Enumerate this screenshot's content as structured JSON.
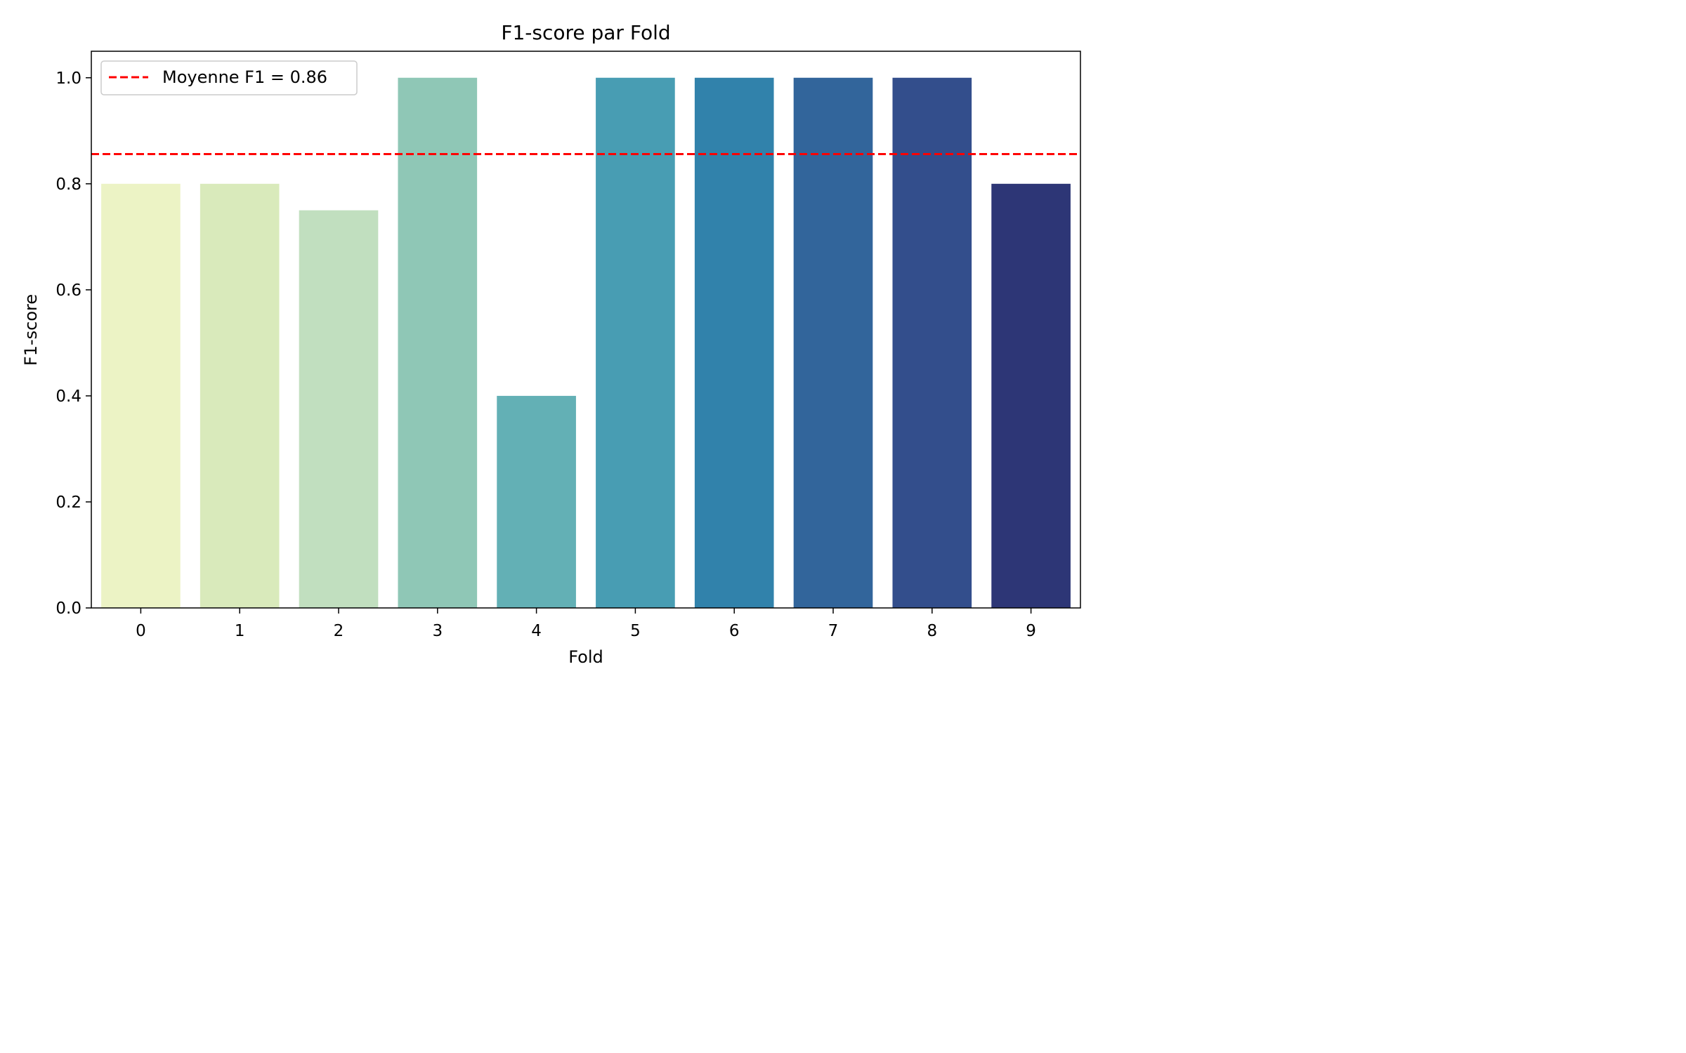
{
  "chart_data": {
    "type": "bar",
    "title": "F1-score par Fold",
    "xlabel": "Fold",
    "ylabel": "F1-score",
    "categories": [
      "0",
      "1",
      "2",
      "3",
      "4",
      "5",
      "6",
      "7",
      "8",
      "9"
    ],
    "values": [
      0.8,
      0.8,
      0.75,
      1.0,
      0.4,
      1.0,
      1.0,
      1.0,
      1.0,
      0.8
    ],
    "bar_colors": [
      "#ecf3c5",
      "#d9eabb",
      "#c1dfbf",
      "#8fc7b6",
      "#63b0b5",
      "#489db3",
      "#3182ab",
      "#32659b",
      "#334e8c",
      "#2d3676"
    ],
    "ylim": [
      0,
      1.05
    ],
    "yticks": [
      "0.0",
      "0.2",
      "0.4",
      "0.6",
      "0.8",
      "1.0"
    ],
    "ytick_values": [
      0,
      0.2,
      0.4,
      0.6,
      0.8,
      1.0
    ],
    "mean_line": {
      "value": 0.856,
      "color": "#ff0000",
      "label": "Moyenne F1 = 0.86"
    },
    "legend_position": "top-left",
    "grid": false
  }
}
